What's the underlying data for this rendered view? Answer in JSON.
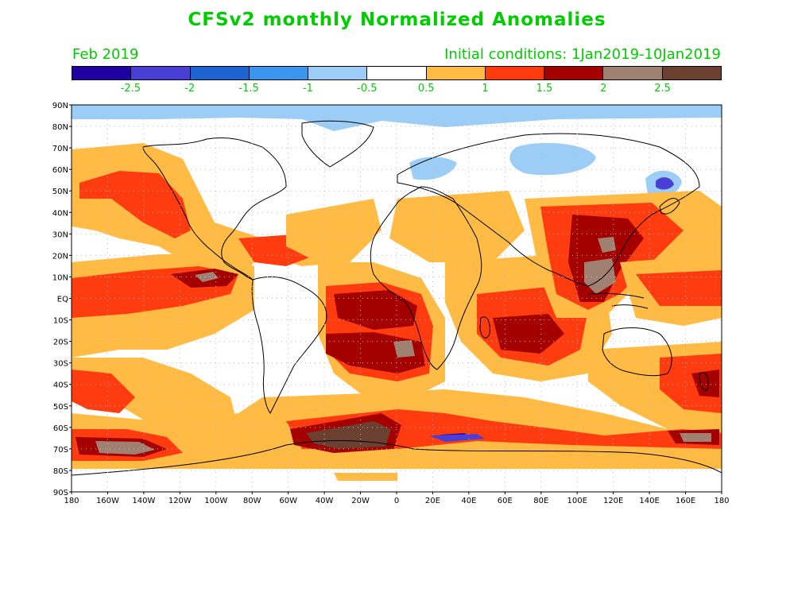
{
  "title": "CFSv2 monthly Normalized Anomalies",
  "forecast_month": "Feb 2019",
  "initial_conditions": "Initial conditions: 1Jan2019-10Jan2019",
  "colorbar": {
    "colors": [
      "#1f00a0",
      "#4a3fd4",
      "#1d64d0",
      "#3c95ec",
      "#9ccdf6",
      "#ffffff",
      "#ffbb44",
      "#ff3b10",
      "#a40000",
      "#a08070",
      "#6b4030"
    ],
    "labels": [
      "-2.5",
      "-2",
      "-1.5",
      "-1",
      "-0.5",
      "0.5",
      "1",
      "1.5",
      "2",
      "2.5"
    ]
  },
  "axes": {
    "lat_labels": [
      "90N",
      "80N",
      "70N",
      "60N",
      "50N",
      "40N",
      "30N",
      "20N",
      "10N",
      "EQ",
      "10S",
      "20S",
      "30S",
      "40S",
      "50S",
      "60S",
      "70S",
      "80S",
      "90S"
    ],
    "lon_labels": [
      "180",
      "160W",
      "140W",
      "120W",
      "100W",
      "80W",
      "60W",
      "40W",
      "20W",
      "0",
      "20E",
      "40E",
      "60E",
      "80E",
      "100E",
      "120E",
      "140E",
      "160E",
      "180"
    ]
  }
}
